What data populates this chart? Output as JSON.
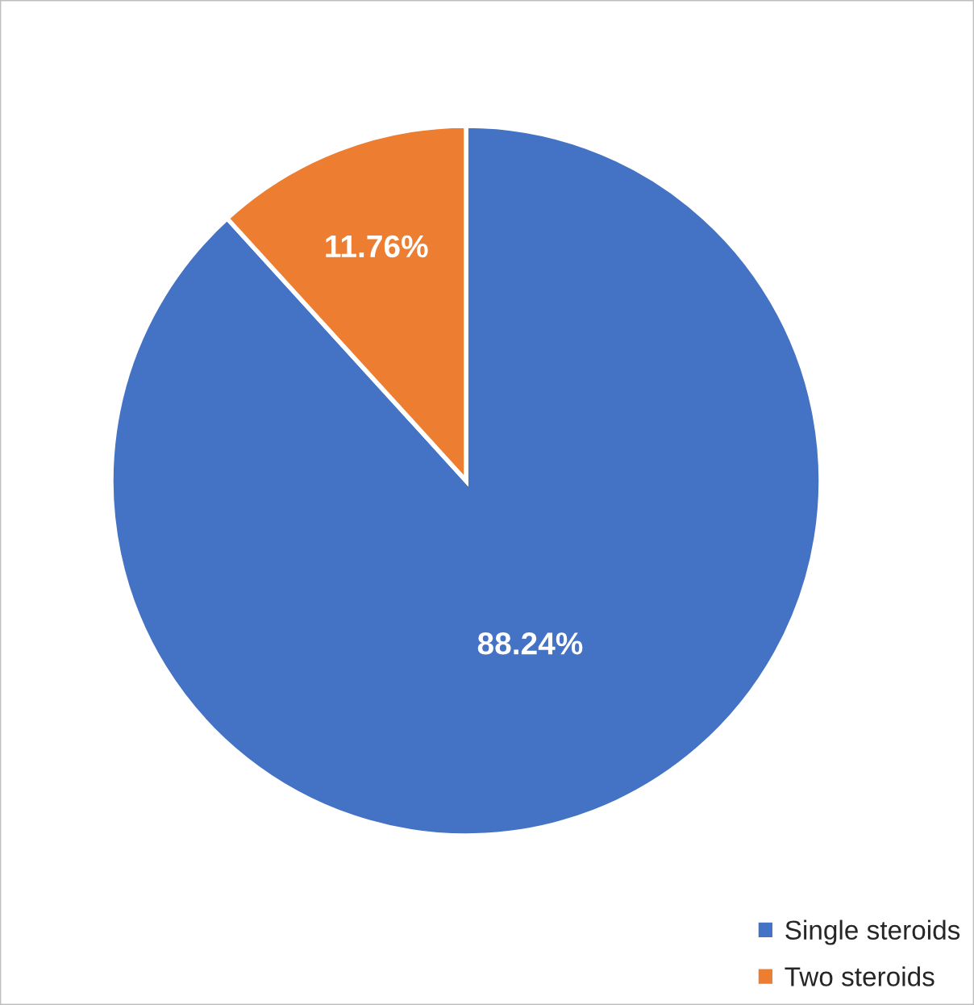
{
  "chart_data": {
    "type": "pie",
    "categories": [
      "Single steroids",
      "Two steroids"
    ],
    "values": [
      88.24,
      11.76
    ],
    "colors": [
      "#4472c4",
      "#ed7d31"
    ],
    "value_labels": [
      "88.24%",
      "11.76%"
    ],
    "legend": "bottom right"
  }
}
